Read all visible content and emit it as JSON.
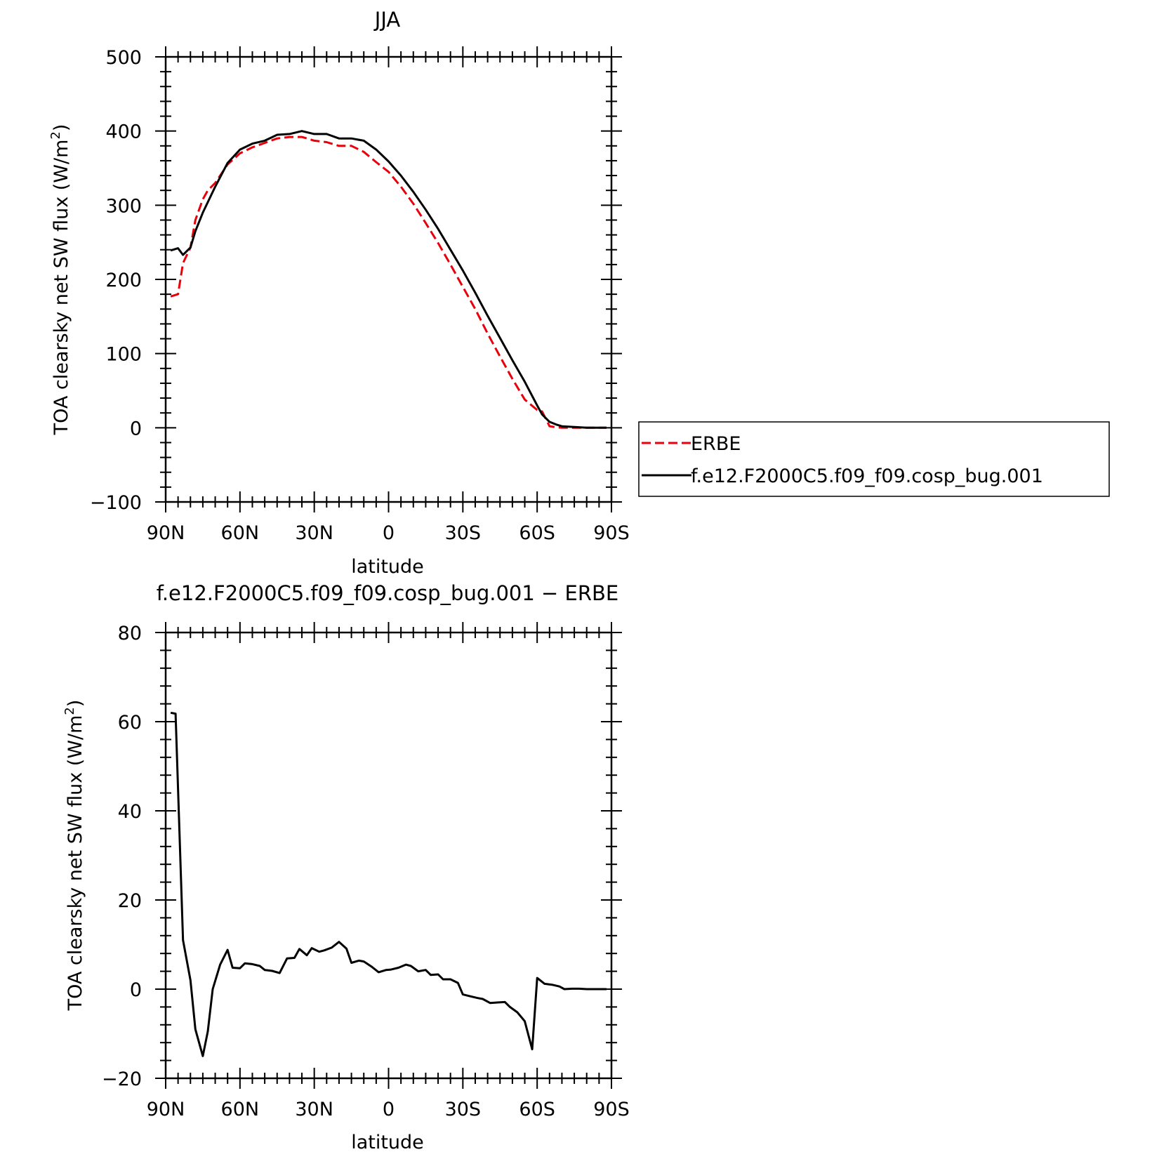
{
  "chart_data": [
    {
      "type": "line",
      "title": "JJA",
      "xlabel": "latitude",
      "ylabel_main": "TOA clearsky net SW flux (W/m",
      "ylabel_sup": "2",
      "ylabel_close": ")",
      "xlim": [
        90,
        -90
      ],
      "ylim": [
        -100,
        500
      ],
      "x_ticks": [
        90,
        60,
        30,
        0,
        -30,
        -60,
        -90
      ],
      "x_tick_labels": [
        "90N",
        "60N",
        "30N",
        "0",
        "30S",
        "60S",
        "90S"
      ],
      "y_ticks": [
        -100,
        0,
        100,
        200,
        300,
        400,
        500
      ],
      "y_tick_labels": [
        "−100",
        "0",
        "100",
        "200",
        "300",
        "400",
        "500"
      ],
      "y_minor_step": 20,
      "x_minor_step": 5,
      "grid": false,
      "legend_position": "right",
      "series": [
        {
          "name": "ERBE",
          "color": "#e8000b",
          "style": "dashed",
          "x": [
            88,
            85,
            83,
            80,
            78,
            75,
            73,
            70,
            65,
            60,
            55,
            50,
            45,
            40,
            35,
            30,
            25,
            20,
            15,
            10,
            5,
            0,
            -5,
            -10,
            -15,
            -20,
            -25,
            -30,
            -35,
            -40,
            -45,
            -50,
            -55,
            -60,
            -62,
            -65,
            -67,
            -70,
            -75,
            -80,
            -85,
            -88
          ],
          "y": [
            177,
            180,
            222,
            243,
            280,
            308,
            320,
            330,
            355,
            370,
            378,
            384,
            390,
            392,
            392,
            387,
            385,
            380,
            380,
            372,
            358,
            345,
            325,
            302,
            276,
            249,
            220,
            190,
            160,
            127,
            96,
            66,
            38,
            24,
            22,
            2,
            1,
            0,
            0,
            0,
            0,
            0
          ]
        },
        {
          "name": "f.e12.F2000C5.f09_f09.cosp_bug.001",
          "color": "#000000",
          "style": "solid",
          "x": [
            88,
            85,
            83,
            80,
            78,
            75,
            70,
            65,
            60,
            55,
            50,
            45,
            40,
            35,
            30,
            25,
            20,
            15,
            10,
            5,
            0,
            -5,
            -10,
            -15,
            -20,
            -25,
            -30,
            -35,
            -40,
            -45,
            -50,
            -55,
            -60,
            -62,
            -65,
            -68,
            -70,
            -75,
            -80,
            -85,
            -88
          ],
          "y": [
            239,
            242,
            233,
            243,
            265,
            290,
            325,
            357,
            375,
            383,
            387,
            395,
            396,
            400,
            396,
            396,
            390,
            390,
            387,
            375,
            359,
            340,
            318,
            294,
            268,
            240,
            212,
            182,
            151,
            121,
            91,
            62,
            30,
            18,
            8,
            4,
            2,
            1,
            0,
            0,
            0
          ]
        }
      ]
    },
    {
      "type": "line",
      "title": "f.e12.F2000C5.f09_f09.cosp_bug.001 − ERBE",
      "xlabel": "latitude",
      "ylabel_main": "TOA clearsky net SW flux (W/m",
      "ylabel_sup": "2",
      "ylabel_close": ")",
      "xlim": [
        90,
        -90
      ],
      "ylim": [
        -20,
        80
      ],
      "x_ticks": [
        90,
        60,
        30,
        0,
        -30,
        -60,
        -90
      ],
      "x_tick_labels": [
        "90N",
        "60N",
        "30N",
        "0",
        "30S",
        "60S",
        "90S"
      ],
      "y_ticks": [
        -20,
        0,
        20,
        40,
        60,
        80
      ],
      "y_tick_labels": [
        "−20",
        "0",
        "20",
        "40",
        "60",
        "80"
      ],
      "y_minor_step": 4,
      "x_minor_step": 5,
      "grid": false,
      "series": [
        {
          "name": "",
          "color": "#000000",
          "style": "solid",
          "x": [
            88,
            86,
            83,
            80,
            78,
            75,
            73,
            71,
            68,
            65,
            63,
            60,
            58,
            55,
            52,
            50,
            47,
            44,
            41,
            38,
            36,
            33,
            31,
            28,
            26,
            23,
            20,
            17,
            15,
            12,
            10,
            7,
            4,
            1,
            -1,
            -4,
            -7,
            -9,
            -12,
            -15,
            -17,
            -20,
            -22,
            -25,
            -28,
            -30,
            -33,
            -36,
            -38,
            -41,
            -44,
            -47,
            -49,
            -52,
            -55,
            -58,
            -60,
            -63,
            -66,
            -69,
            -71,
            -74,
            -77,
            -80,
            -83,
            -86,
            -88
          ],
          "y": [
            62,
            61.8,
            11,
            2,
            -9,
            -15,
            -9.5,
            0,
            5.5,
            8.8,
            4.8,
            4.7,
            5.8,
            5.6,
            5.2,
            4.3,
            4.1,
            3.6,
            6.9,
            7,
            9,
            7.6,
            9.2,
            8.4,
            8.7,
            9.3,
            10.6,
            9.1,
            5.9,
            6.4,
            6.2,
            5.1,
            3.8,
            4.3,
            4.4,
            4.8,
            5.5,
            5.2,
            4,
            4.3,
            3.2,
            3.3,
            2.2,
            2.2,
            1.4,
            -1.2,
            -1.6,
            -2,
            -2.2,
            -3.1,
            -3,
            -2.9,
            -4,
            -5.2,
            -7.2,
            -13.5,
            2.5,
            1.2,
            1,
            0.6,
            0,
            0.1,
            0.1,
            0,
            0,
            0,
            0
          ]
        }
      ]
    }
  ]
}
